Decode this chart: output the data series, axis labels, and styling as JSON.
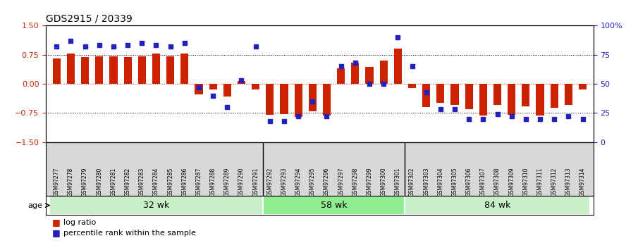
{
  "title": "GDS2915 / 20339",
  "samples": [
    "GSM97277",
    "GSM97278",
    "GSM97279",
    "GSM97280",
    "GSM97281",
    "GSM97282",
    "GSM97283",
    "GSM97284",
    "GSM97285",
    "GSM97286",
    "GSM97287",
    "GSM97288",
    "GSM97289",
    "GSM97290",
    "GSM97291",
    "GSM97292",
    "GSM97293",
    "GSM97294",
    "GSM97295",
    "GSM97296",
    "GSM97297",
    "GSM97298",
    "GSM97299",
    "GSM97300",
    "GSM97301",
    "GSM97302",
    "GSM97303",
    "GSM97304",
    "GSM97305",
    "GSM97306",
    "GSM97307",
    "GSM97308",
    "GSM97309",
    "GSM97310",
    "GSM97311",
    "GSM97312",
    "GSM97313",
    "GSM97314"
  ],
  "log_ratio": [
    0.65,
    0.78,
    0.68,
    0.7,
    0.7,
    0.68,
    0.7,
    0.78,
    0.7,
    0.78,
    -0.28,
    -0.15,
    -0.33,
    0.07,
    -0.15,
    -0.8,
    -0.78,
    -0.85,
    -0.7,
    -0.82,
    0.4,
    0.55,
    0.43,
    0.6,
    0.9,
    -0.1,
    -0.6,
    -0.48,
    -0.55,
    -0.65,
    -0.82,
    -0.55,
    -0.8,
    -0.58,
    -0.82,
    -0.62,
    -0.55,
    -0.15
  ],
  "percentile_rank": [
    82,
    87,
    82,
    83,
    82,
    83,
    85,
    83,
    82,
    85,
    47,
    40,
    30,
    53,
    82,
    18,
    18,
    22,
    35,
    22,
    65,
    68,
    50,
    50,
    90,
    65,
    43,
    28,
    28,
    20,
    20,
    24,
    22,
    20,
    20,
    20,
    22,
    20
  ],
  "groups": [
    {
      "label": "32 wk",
      "start": 0,
      "end": 15
    },
    {
      "label": "58 wk",
      "start": 15,
      "end": 25
    },
    {
      "label": "84 wk",
      "start": 25,
      "end": 38
    }
  ],
  "bar_color": "#CC2200",
  "dot_color": "#2222BB",
  "ylim_left": [
    -1.5,
    1.5
  ],
  "ylim_right": [
    0,
    100
  ],
  "yticks_left": [
    -1.5,
    -0.75,
    0,
    0.75,
    1.5
  ],
  "yticks_right": [
    0,
    25,
    50,
    75,
    100
  ],
  "hlines": [
    -0.75,
    0.0,
    0.75
  ],
  "label_bg_color": "#d8d8d8",
  "group_colors": [
    "#c8f0c8",
    "#90EE90",
    "#c8f0c8"
  ],
  "age_label": "age",
  "legend_items": [
    {
      "color": "#CC2200",
      "label": "log ratio"
    },
    {
      "color": "#2222BB",
      "label": "percentile rank within the sample"
    }
  ]
}
